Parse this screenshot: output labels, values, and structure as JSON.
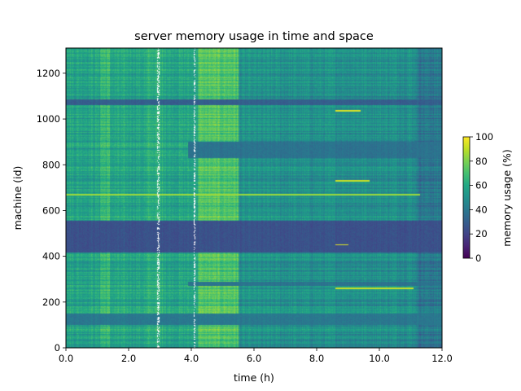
{
  "chart_data": {
    "type": "heatmap",
    "title": "server memory usage in time and space",
    "xlabel": "time (h)",
    "ylabel": "machine (id)",
    "xlim": [
      0,
      12
    ],
    "ylim": [
      0,
      1310
    ],
    "x_ticks": [
      0,
      2,
      4,
      6,
      8,
      10,
      12
    ],
    "x_tick_labels": [
      "0.0",
      "2.0",
      "4.0",
      "6.0",
      "8.0",
      "10.0",
      "12.0"
    ],
    "y_ticks": [
      0,
      200,
      400,
      600,
      800,
      1000,
      1200
    ],
    "y_tick_labels": [
      "0",
      "200",
      "400",
      "600",
      "800",
      "1000",
      "1200"
    ],
    "colorbar": {
      "label": "memory usage (%)",
      "range": [
        0,
        100
      ],
      "ticks": [
        0,
        20,
        40,
        60,
        80,
        100
      ],
      "tick_labels": [
        "0",
        "20",
        "40",
        "60",
        "80",
        "100"
      ],
      "colormap": "viridis"
    },
    "grid": false,
    "base_level_percent": 58,
    "time_bands": [
      {
        "t0": 1.1,
        "t1": 1.4,
        "level": 66
      },
      {
        "t0": 2.6,
        "t1": 3.2,
        "level": 62
      },
      {
        "t0": 4.2,
        "t1": 5.5,
        "level": 72
      },
      {
        "t0": 5.5,
        "t1": 12.0,
        "level": 50
      },
      {
        "t0": 11.2,
        "t1": 12.0,
        "level": 40
      }
    ],
    "low_usage_machine_ranges": [
      {
        "id0": 415,
        "id1": 555,
        "t0": 0,
        "t1": 12,
        "level": 25
      },
      {
        "id0": 100,
        "id1": 150,
        "t0": 0,
        "t1": 12,
        "level": 40
      },
      {
        "id0": 270,
        "id1": 290,
        "t0": 3.9,
        "t1": 12,
        "level": 38
      },
      {
        "id0": 830,
        "id1": 900,
        "t0": 3.9,
        "t1": 12,
        "level": 38
      },
      {
        "id0": 1060,
        "id1": 1085,
        "t0": 0,
        "t1": 12,
        "level": 30
      }
    ],
    "high_usage_lines": [
      {
        "id": 670,
        "t0": 0,
        "t1": 11.3,
        "level": 85
      },
      {
        "id": 1035,
        "t0": 8.6,
        "t1": 9.4,
        "level": 95
      },
      {
        "id": 730,
        "t0": 8.6,
        "t1": 9.7,
        "level": 92
      },
      {
        "id": 450,
        "t0": 8.6,
        "t1": 9.0,
        "level": 95
      },
      {
        "id": 260,
        "t0": 8.6,
        "t1": 11.1,
        "level": 92
      }
    ],
    "missing_data_times": [
      2.95,
      4.1
    ]
  }
}
